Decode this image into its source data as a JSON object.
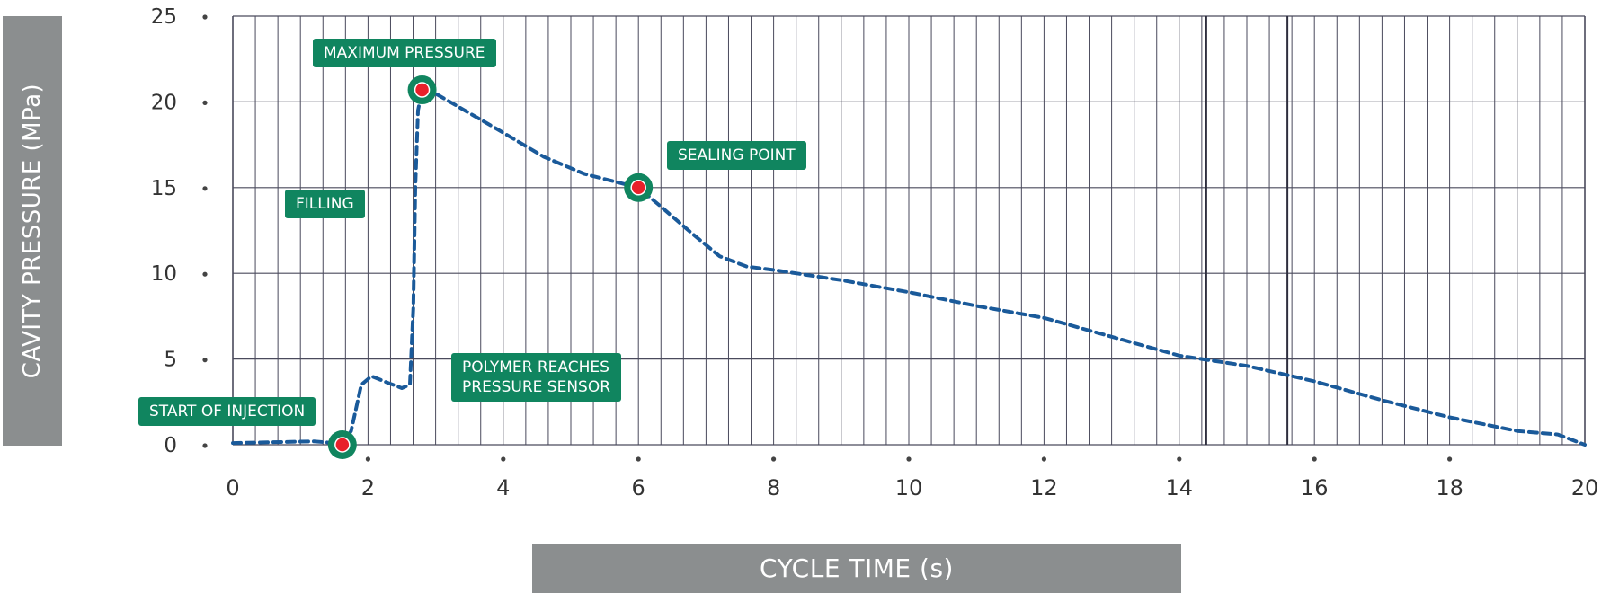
{
  "chart_data": {
    "type": "line",
    "xlabel": "CYCLE TIME (s)",
    "ylabel": "CAVITY PRESSURE (MPa)",
    "xlim": [
      0,
      20
    ],
    "ylim": [
      0,
      25
    ],
    "x_ticks": [
      "0",
      "2",
      "4",
      "6",
      "8",
      "10",
      "12",
      "14",
      "16",
      "18",
      "20"
    ],
    "y_ticks": [
      "0",
      "5",
      "10",
      "15",
      "20",
      "25"
    ],
    "grid": true,
    "series": [
      {
        "color": "#1a5a9a",
        "style": "dashed",
        "x": [
          0,
          1.2,
          1.5,
          1.62,
          1.75,
          1.9,
          2.05,
          2.3,
          2.5,
          2.62,
          2.67,
          2.7,
          2.74,
          2.8,
          2.95,
          3.3,
          4.0,
          4.6,
          5.2,
          5.7,
          6.0,
          6.3,
          6.8,
          7.2,
          7.6,
          8.0,
          8.5,
          9.0,
          10.0,
          11.0,
          12.0,
          13.0,
          14.0,
          15.0,
          16.0,
          17.0,
          18.0,
          19.0,
          19.6,
          20.0
        ],
        "y": [
          0.1,
          0.2,
          0.1,
          0.0,
          0.8,
          3.5,
          4.0,
          3.6,
          3.3,
          3.5,
          8.0,
          15.0,
          19.5,
          20.7,
          20.6,
          19.8,
          18.2,
          16.8,
          15.8,
          15.3,
          15.0,
          14.0,
          12.3,
          11.0,
          10.4,
          10.2,
          9.9,
          9.6,
          8.9,
          8.1,
          7.4,
          6.3,
          5.2,
          4.6,
          3.7,
          2.6,
          1.6,
          0.8,
          0.6,
          0.0
        ]
      }
    ],
    "markers": [
      {
        "label": "START OF INJECTION",
        "x": 1.62,
        "y": 0.0
      },
      {
        "label": "MAXIMUM PRESSURE",
        "x": 2.8,
        "y": 20.7
      },
      {
        "label": "SEALING POINT",
        "x": 6.0,
        "y": 15.0
      }
    ],
    "annotations": [
      "MAXIMUM PRESSURE",
      "SEALING POINT",
      "FILLING",
      "POLYMER REACHES\nPRESSURE SENSOR",
      "START OF INJECTION"
    ],
    "colors": {
      "grid": "#4a4a5c",
      "label_box": "#10855f",
      "axis_box": "#8b8e8f",
      "marker_fill": "#e8202a",
      "marker_ring": "#10855f"
    }
  }
}
